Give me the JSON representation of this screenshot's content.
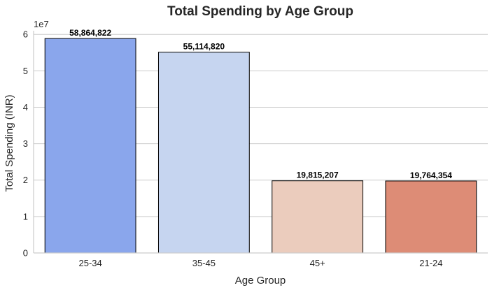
{
  "chart_data": {
    "type": "bar",
    "title": "Total Spending by Age Group",
    "xlabel": "Age Group",
    "ylabel": "Total Spending (INR)",
    "y_offset_label": "1e7",
    "categories": [
      "25-34",
      "35-45",
      "45+",
      "21-24"
    ],
    "values": [
      58864822,
      55114820,
      19815207,
      19764354
    ],
    "data_labels": [
      "58,864,822",
      "55,114,820",
      "19,815,207",
      "19,764,354"
    ],
    "bar_colors": [
      "#8aa6ec",
      "#c6d5f0",
      "#ebccbd",
      "#dd8c76"
    ],
    "ylim": [
      0,
      61000000
    ],
    "y_ticks": [
      0,
      10000000,
      20000000,
      30000000,
      40000000,
      50000000,
      60000000
    ],
    "y_tick_labels": [
      "0",
      "1",
      "2",
      "3",
      "4",
      "5",
      "6"
    ],
    "grid": "horizontal",
    "legend": "none"
  }
}
